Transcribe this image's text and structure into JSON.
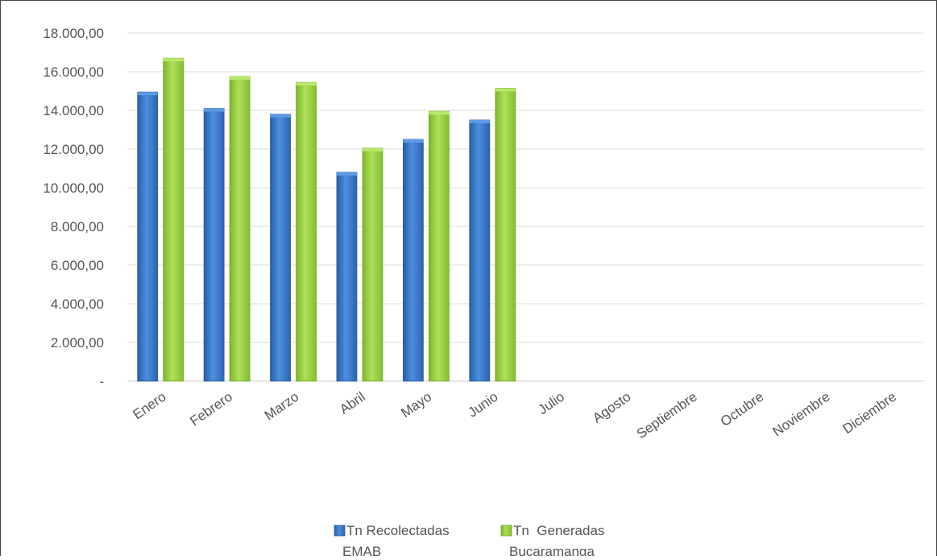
{
  "chart_data": {
    "type": "bar",
    "categories": [
      "Enero",
      "Febrero",
      "Marzo",
      "Abril",
      "Mayo",
      "Junio",
      "Julio",
      "Agosto",
      "Septiembre",
      "Octubre",
      "Noviembre",
      "Diciembre"
    ],
    "series": [
      {
        "name": "Tn Recolectadas EMAB",
        "legend_lines": [
          "Tn Recolectadas",
          "EMAB"
        ],
        "color": "#3a7bd5",
        "values": [
          14950,
          14100,
          13800,
          10800,
          12500,
          13500,
          null,
          null,
          null,
          null,
          null,
          null
        ]
      },
      {
        "name": "Tn  Generadas Bucaramanga",
        "legend_lines": [
          "Tn  Generadas",
          "Bucaramanga"
        ],
        "color": "#9bd23c",
        "values": [
          16700,
          15750,
          15450,
          12050,
          13950,
          15150,
          null,
          null,
          null,
          null,
          null,
          null
        ]
      }
    ],
    "yticks": [
      "-",
      "2.000,00",
      "4.000,00",
      "6.000,00",
      "8.000,00",
      "10.000,00",
      "12.000,00",
      "14.000,00",
      "16.000,00",
      "18.000,00"
    ],
    "ylim": [
      0,
      18000
    ],
    "grid": true,
    "legend": "bottom-center",
    "xlabel": "",
    "ylabel": "",
    "title": ""
  }
}
